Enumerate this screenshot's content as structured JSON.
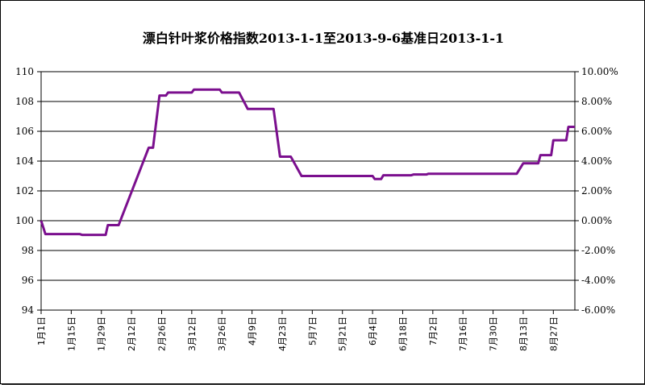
{
  "chart_data": {
    "type": "line",
    "title": "漂白针叶浆价格指数2013-1-1至2013-9-6基准日2013-1-1",
    "xlabel": "",
    "ylabel": "",
    "ylim": [
      94,
      110
    ],
    "y_ticks": [
      "94",
      "96",
      "98",
      "100",
      "102",
      "104",
      "106",
      "108",
      "110"
    ],
    "y2lim": [
      -6,
      10
    ],
    "y2_ticks": [
      "-6.00%",
      "-4.00%",
      "-2.00%",
      "0.00%",
      "2.00%",
      "4.00%",
      "6.00%",
      "8.00%",
      "10.00%"
    ],
    "x_ticks": [
      {
        "label": "1月1日",
        "day": 0
      },
      {
        "label": "1月15日",
        "day": 14
      },
      {
        "label": "1月29日",
        "day": 28
      },
      {
        "label": "2月12日",
        "day": 42
      },
      {
        "label": "2月26日",
        "day": 56
      },
      {
        "label": "3月12日",
        "day": 70
      },
      {
        "label": "3月26日",
        "day": 84
      },
      {
        "label": "4月9日",
        "day": 98
      },
      {
        "label": "4月23日",
        "day": 112
      },
      {
        "label": "5月7日",
        "day": 126
      },
      {
        "label": "5月21日",
        "day": 140
      },
      {
        "label": "6月4日",
        "day": 154
      },
      {
        "label": "6月18日",
        "day": 168
      },
      {
        "label": "7月2日",
        "day": 182
      },
      {
        "label": "7月16日",
        "day": 196
      },
      {
        "label": "7月30日",
        "day": 210
      },
      {
        "label": "8月13日",
        "day": 224
      },
      {
        "label": "8月27日",
        "day": 238
      }
    ],
    "xlim_days": [
      0,
      248
    ],
    "grid": "horizontal",
    "line_color": "#7b0f8e",
    "series": [
      {
        "name": "",
        "points": [
          [
            0,
            100.0
          ],
          [
            2,
            99.1
          ],
          [
            18,
            99.1
          ],
          [
            19,
            99.05
          ],
          [
            30,
            99.05
          ],
          [
            31,
            99.7
          ],
          [
            36,
            99.7
          ],
          [
            50,
            104.9
          ],
          [
            52,
            104.9
          ],
          [
            55,
            108.4
          ],
          [
            58,
            108.4
          ],
          [
            59,
            108.6
          ],
          [
            70,
            108.6
          ],
          [
            71,
            108.8
          ],
          [
            83,
            108.8
          ],
          [
            84,
            108.6
          ],
          [
            92,
            108.6
          ],
          [
            96,
            107.5
          ],
          [
            108,
            107.5
          ],
          [
            111,
            104.3
          ],
          [
            116,
            104.3
          ],
          [
            121,
            103.0
          ],
          [
            154,
            103.0
          ],
          [
            155,
            102.8
          ],
          [
            158,
            102.8
          ],
          [
            159,
            103.05
          ],
          [
            172,
            103.05
          ],
          [
            173,
            103.1
          ],
          [
            179,
            103.1
          ],
          [
            180,
            103.15
          ],
          [
            221,
            103.15
          ],
          [
            224,
            103.85
          ],
          [
            231,
            103.85
          ],
          [
            232,
            104.4
          ],
          [
            237,
            104.4
          ],
          [
            238,
            105.4
          ],
          [
            244,
            105.4
          ],
          [
            245,
            106.3
          ],
          [
            248,
            106.3
          ]
        ]
      }
    ]
  }
}
